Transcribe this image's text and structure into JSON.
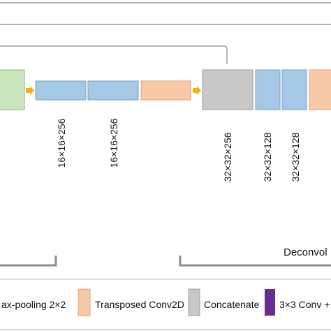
{
  "diagram": {
    "dims": {
      "d1": "16×16×256",
      "d2": "16×16×256",
      "d3": "32×32×256",
      "d4": "32×32×128",
      "d5": "32×32×128"
    },
    "section_label": "Deconvol",
    "legend": [
      {
        "text": "ax-pooling 2×2",
        "color": "#b7dcae"
      },
      {
        "text": "Transposed Conv2D",
        "color": "#f8c9a6"
      },
      {
        "text": "Concatenate",
        "color": "#c9c7c8"
      },
      {
        "text": "3×3 Conv +",
        "color": "#6a2c91"
      }
    ],
    "colors": {
      "conv_blue": "#a4c8e6",
      "green": "#c9e6bd",
      "orange": "#f8c9a6",
      "gray": "#c9c7c8",
      "arrow": "#f0b315",
      "line": "#8c8c8c"
    }
  }
}
